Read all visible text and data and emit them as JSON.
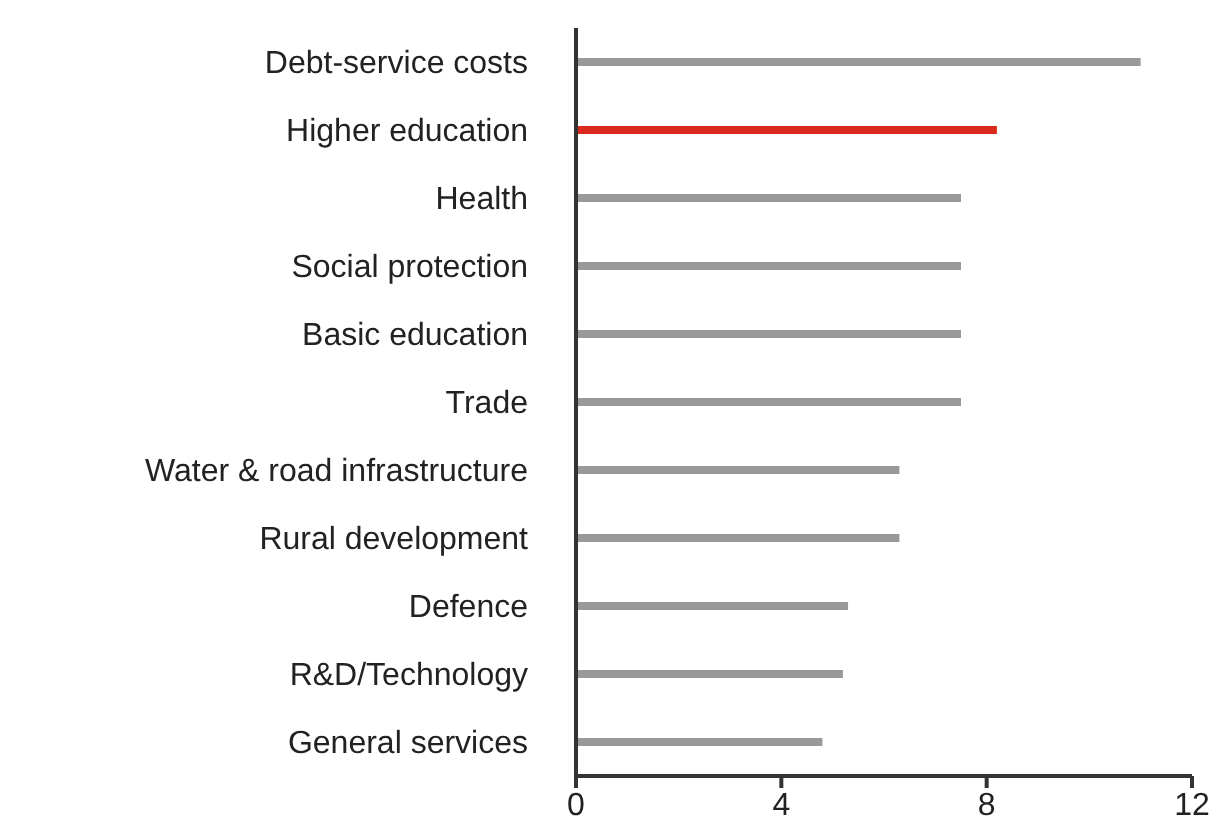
{
  "chart_data": {
    "type": "bar",
    "orientation": "horizontal",
    "categories": [
      "Debt-service costs",
      "Higher education",
      "Health",
      "Social protection",
      "Basic education",
      "Trade",
      "Water & road infrastructure",
      "Rural development",
      "Defence",
      "R&D/Technology",
      "General services"
    ],
    "values": [
      11.0,
      8.2,
      7.5,
      7.5,
      7.5,
      7.5,
      6.3,
      6.3,
      5.3,
      5.2,
      4.8
    ],
    "colors": [
      "#98999b",
      "#da291c",
      "#98999b",
      "#98999b",
      "#98999b",
      "#98999b",
      "#98999b",
      "#98999b",
      "#98999b",
      "#98999b",
      "#98999b"
    ],
    "xlim": [
      0,
      12
    ],
    "xticks": [
      0,
      4,
      8,
      12
    ],
    "grid": false,
    "legend": false
  }
}
